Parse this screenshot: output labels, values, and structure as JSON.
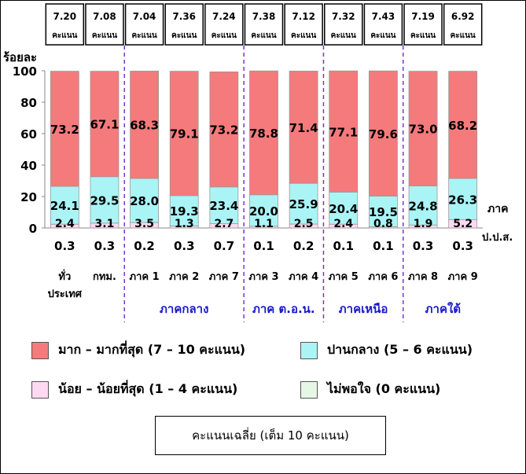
{
  "chart_data": {
    "type": "bar",
    "stacked": true,
    "ylabel": "ร้อยละ",
    "ylim": [
      0,
      100
    ],
    "yticks": [
      0,
      20,
      40,
      60,
      80,
      100
    ],
    "xlabel_right": "ภาค",
    "right_label_pps": "ป.ป.ส.",
    "categories": [
      "ทั่ว\nประเทศ",
      "กทม.",
      "ภาค 1",
      "ภาค 2",
      "ภาค 7",
      "ภาค 3",
      "ภาค 4",
      "ภาค 5",
      "ภาค 6",
      "ภาค 8",
      "ภาค 9"
    ],
    "averages": [
      "7.20",
      "7.08",
      "7.04",
      "7.36",
      "7.24",
      "7.38",
      "7.12",
      "7.32",
      "7.43",
      "7.19",
      "6.92"
    ],
    "average_unit": "คะแนน",
    "bottom_values": [
      "0.3",
      "0.3",
      "0.2",
      "0.3",
      "0.7",
      "0.1",
      "0.2",
      "0.1",
      "0.1",
      "0.3",
      "0.3"
    ],
    "series": [
      {
        "name": "น้อย – น้อยที่สุด (1 – 4 คะแนน)",
        "color": "#ffd9f2",
        "values": [
          2.4,
          3.1,
          3.5,
          1.3,
          2.7,
          1.1,
          2.5,
          2.4,
          0.8,
          1.9,
          5.2
        ]
      },
      {
        "name": "ปานกลาง (5 – 6 คะแนน)",
        "color": "#aaf4f6",
        "values": [
          24.1,
          29.5,
          28.0,
          19.3,
          23.4,
          20.0,
          25.9,
          20.4,
          19.5,
          24.8,
          26.3
        ]
      },
      {
        "name": "มาก – มากที่สุด (7 – 10 คะแนน)",
        "color": "#f47a7c",
        "values": [
          73.2,
          67.1,
          68.3,
          79.1,
          73.2,
          78.8,
          71.4,
          77.1,
          79.6,
          73.0,
          68.2
        ]
      }
    ],
    "groups": [
      {
        "label": "ภาคกลาง",
        "color": "#1818cc"
      },
      {
        "label": "ภาค ต.อ.น.",
        "color": "#1818cc"
      },
      {
        "label": "ภาคเหนือ",
        "color": "#1818cc"
      },
      {
        "label": "ภาคใต้",
        "color": "#1818cc"
      }
    ]
  },
  "legend": [
    {
      "label": "มาก – มากที่สุด (7 – 10 คะแนน)",
      "color": "#f47a7c"
    },
    {
      "label": "ปานกลาง (5 – 6 คะแนน)",
      "color": "#aaf4f6"
    },
    {
      "label": "น้อย – น้อยที่สุด (1 – 4 คะแนน)",
      "color": "#ffd9f2"
    },
    {
      "label": "ไม่พอใจ (0 คะแนน)",
      "color": "#e6f7e6"
    }
  ],
  "note": "คะแนนเฉลี่ย (เต็ม 10 คะแนน)"
}
